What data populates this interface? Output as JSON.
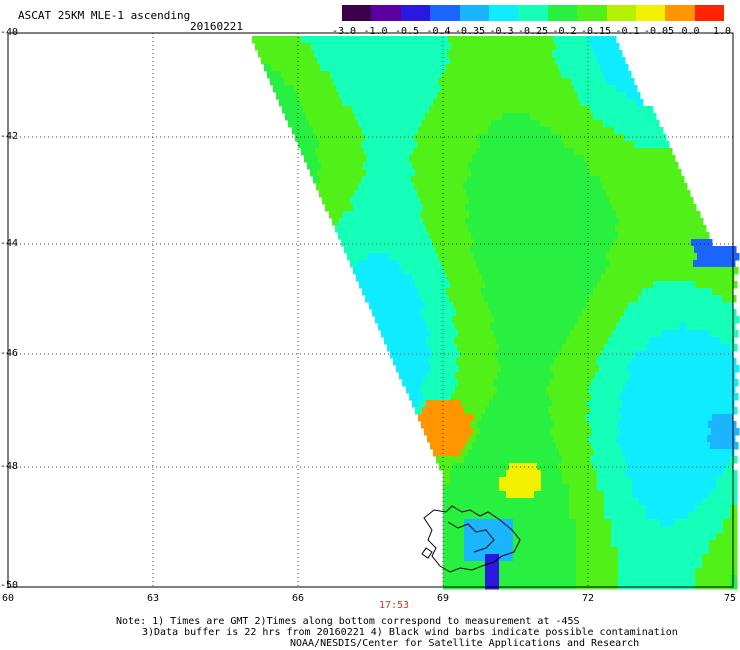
{
  "header": {
    "title": "ASCAT 25KM MLE-1 ascending",
    "date": "20160221"
  },
  "legend": {
    "labels": [
      "-3.0",
      "-1.0",
      "-0.5",
      "-0.4",
      "-0.35",
      "-0.3",
      "-0.25",
      "-0.2",
      "-0.15",
      "-0.1",
      "-0.05",
      "0.0",
      "1.0"
    ],
    "colors": [
      "#3a0048",
      "#5a00a0",
      "#2a18e0",
      "#1a64ff",
      "#1ab4ff",
      "#10ecff",
      "#14ffb8",
      "#28f040",
      "#50f018",
      "#b4f000",
      "#f0f000",
      "#ff9600",
      "#ff2400"
    ]
  },
  "axes": {
    "y_labels": [
      "-40",
      "-42",
      "-44",
      "-46",
      "-48",
      "-50"
    ],
    "x_labels": [
      "60",
      "63",
      "66",
      "69",
      "72",
      "75"
    ]
  },
  "time_label": "17:53",
  "notes": {
    "line1": "Note: 1) Times are GMT 2)Times along bottom correspond to measurement at -45S",
    "line2": "3)Data buffer is 22 hrs from 20160221 4) Black wind barbs indicate possible contamination",
    "line3": "NOAA/NESDIS/Center for Satellite Applications and Research"
  }
}
